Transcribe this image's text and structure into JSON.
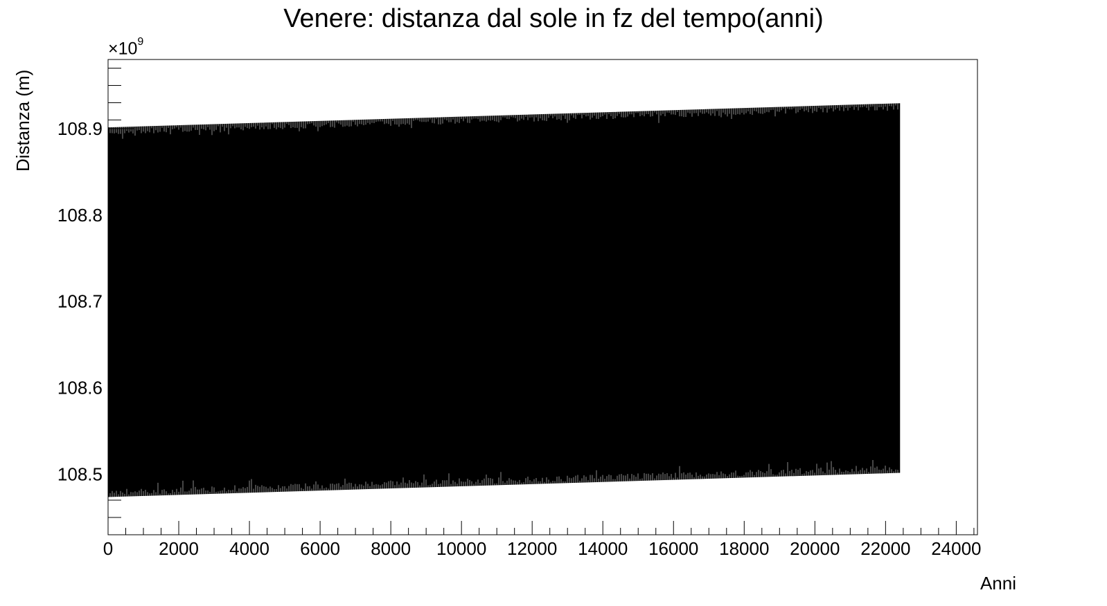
{
  "chart_data": {
    "type": "line",
    "title": "Venere: distanza dal sole in fz del tempo(anni)",
    "xlabel": "Anni",
    "ylabel": "Distanza (m)",
    "y_multiplier": "×10",
    "y_multiplier_exp": "9",
    "xlim": [
      0,
      24600
    ],
    "ylim": [
      108.43,
      108.98
    ],
    "x_ticks": [
      0,
      2000,
      4000,
      6000,
      8000,
      10000,
      12000,
      14000,
      16000,
      18000,
      20000,
      22000,
      24000
    ],
    "x_tick_labels": [
      "0",
      "2000",
      "4000",
      "6000",
      "8000",
      "10000",
      "12000",
      "14000",
      "16000",
      "18000",
      "20000",
      "22000",
      "24000"
    ],
    "y_ticks": [
      108.5,
      108.6,
      108.7,
      108.8,
      108.9
    ],
    "y_tick_labels": [
      "108.5",
      "108.6",
      "108.7",
      "108.8",
      "108.9"
    ],
    "grid": false,
    "series": [
      {
        "color": "#000000",
        "x_range": [
          0,
          22400
        ],
        "upper_envelope": {
          "x": [
            0,
            22400
          ],
          "y": [
            108.901,
            108.929
          ]
        },
        "lower_envelope": {
          "x": [
            0,
            22400
          ],
          "y": [
            108.474,
            108.502
          ]
        }
      }
    ]
  }
}
